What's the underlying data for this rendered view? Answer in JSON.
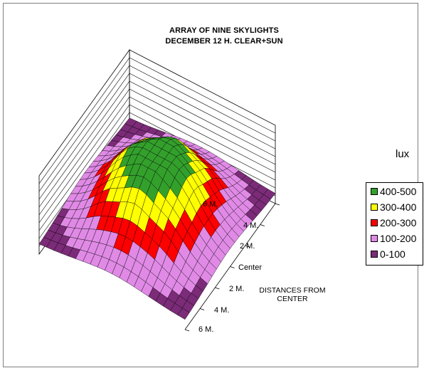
{
  "chart_data": {
    "type": "surface-3d",
    "title": "ARRAY OF NINE SKYLIGHTS",
    "subtitle": "DECEMBER 12 H. CLEAR+SUN",
    "axis_title": "DISTANCES FROM CENTER",
    "axis_ticks": [
      "6 M.",
      "4 M.",
      "2 M.",
      "Center",
      "2 M.",
      "4 M.",
      "6 M."
    ],
    "legend_title": "lux",
    "legend": [
      {
        "label": "400-500",
        "color": "#33a02c"
      },
      {
        "label": "300-400",
        "color": "#ffff00"
      },
      {
        "label": "200-300",
        "color": "#ff0000"
      },
      {
        "label": "100-200",
        "color": "#e08ae6"
      },
      {
        "label": "0-100",
        "color": "#7b2b78"
      }
    ],
    "z_range": [
      0,
      500
    ],
    "grid": true
  }
}
